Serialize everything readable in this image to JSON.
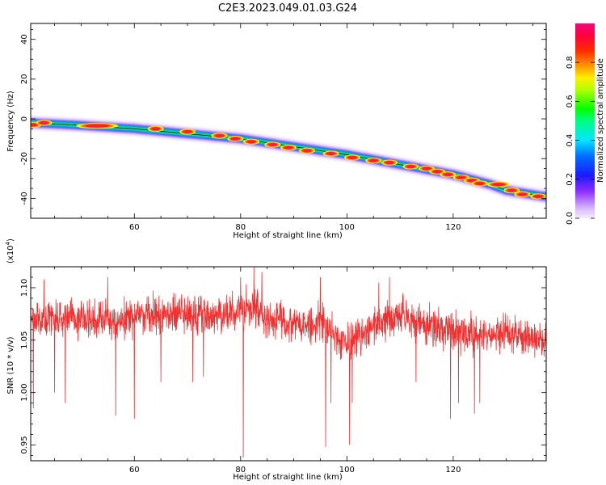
{
  "title": "C2E3.2023.049.01.03.G24",
  "chart_data": [
    {
      "type": "heatmap",
      "title": "C2E3.2023.049.01.03.G24",
      "xlabel": "Height of straight line (km)",
      "ylabel": "Frequency (Hz)",
      "xlim": [
        40.5,
        137.5
      ],
      "ylim": [
        -50,
        48
      ],
      "xticks": [
        60,
        80,
        100,
        120
      ],
      "yticks": [
        40,
        20,
        0,
        -20,
        -40
      ],
      "colorbar": {
        "label": "Normalized spectral amplitude",
        "range": [
          0.0,
          1.0
        ],
        "ticks": [
          0.0,
          0.2,
          0.4,
          0.6,
          0.8
        ],
        "colormap": "rainbow (purple-white → blue → cyan → green → yellow → red → pink)"
      },
      "ridge_line": {
        "x": [
          40.5,
          48,
          60,
          80,
          100,
          120,
          127,
          130,
          137
        ],
        "y": [
          -2,
          -3,
          -5,
          -10,
          -18,
          -28,
          -33,
          -36,
          -39
        ]
      },
      "hot_spots": {
        "x": [
          41,
          43,
          53,
          64,
          70,
          76,
          79,
          82,
          86,
          89,
          92.5,
          97,
          101,
          105,
          108,
          112,
          115,
          117,
          119,
          121.5,
          123.5,
          125,
          128.5,
          131,
          133,
          136
        ],
        "y": [
          -3,
          -2,
          -3.5,
          -5,
          -6.5,
          -8.5,
          -10,
          -11.5,
          -13,
          -14.5,
          -16,
          -17.5,
          -19.5,
          -21,
          -22,
          -24,
          -25,
          -26.5,
          -28,
          -29.5,
          -31,
          -32.5,
          -33,
          -36,
          -38,
          -39
        ]
      },
      "grid": false
    },
    {
      "type": "line",
      "xlabel": "Height of straight line (km)",
      "ylabel": "SNR (10 * v/v)",
      "y_multiplier_label": "(x10^4)",
      "xlim": [
        40.5,
        137.5
      ],
      "ylim": [
        0.935,
        1.12
      ],
      "xticks": [
        60,
        80,
        100,
        120
      ],
      "yticks": [
        0.95,
        1.0,
        1.05,
        1.1
      ],
      "series": [
        {
          "color": "#f23030",
          "envelope": {
            "x": [
              41,
              45,
              50,
              55,
              60,
              65,
              70,
              75,
              80,
              83,
              85,
              90,
              95,
              98,
              100,
              103,
              105,
              110,
              115,
              120,
              125,
              130,
              135,
              137
            ],
            "y": [
              1.07,
              1.07,
              1.07,
              1.068,
              1.07,
              1.075,
              1.073,
              1.075,
              1.077,
              1.08,
              1.07,
              1.065,
              1.065,
              1.055,
              1.045,
              1.055,
              1.065,
              1.075,
              1.063,
              1.06,
              1.055,
              1.057,
              1.05,
              1.05
            ]
          },
          "dips": {
            "x": [
              41,
              45,
              47,
              56.5,
              60,
              65,
              71,
              73,
              80.5,
              96,
              97,
              100.5,
              101,
              113,
              119.5,
              121,
              124,
              125
            ],
            "y": [
              0.985,
              1.0,
              0.99,
              0.978,
              0.975,
              1.01,
              1.01,
              1.015,
              0.938,
              0.948,
              0.99,
              0.95,
              0.99,
              1.01,
              0.975,
              0.99,
              0.98,
              0.99
            ]
          },
          "peaks": {
            "x": [
              43,
              55,
              80,
              82.5,
              84,
              95,
              106,
              108
            ],
            "y": [
              1.108,
              1.11,
              1.11,
              1.12,
              1.115,
              1.11,
              1.105,
              1.11
            ]
          }
        }
      ],
      "grid": false
    }
  ]
}
